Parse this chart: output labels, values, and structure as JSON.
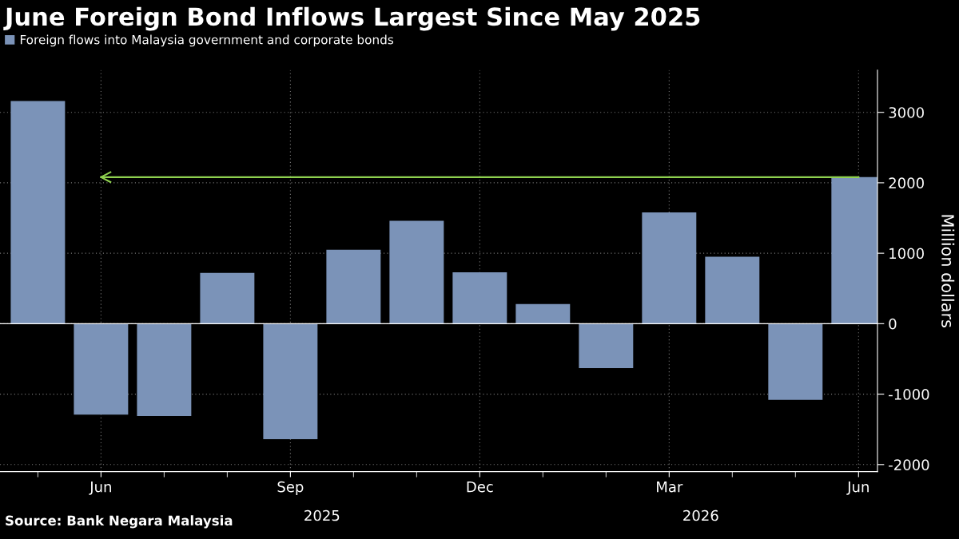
{
  "chart_data": {
    "type": "bar",
    "title": "June Foreign Bond Inflows Largest Since May 2025",
    "categories": [
      null,
      "Jun",
      null,
      null,
      "Sep",
      null,
      null,
      "Dec",
      null,
      null,
      "Mar",
      null,
      null,
      "Jun"
    ],
    "series": [
      {
        "name": "Foreign flows into Malaysia government and corporate bonds",
        "color": "#7b93b8",
        "values": [
          3160,
          -1290,
          -1310,
          720,
          -1640,
          1050,
          1460,
          730,
          280,
          -630,
          1580,
          950,
          -1080,
          2080
        ]
      }
    ],
    "ylabel": "Million dollars",
    "ylim": [
      -2100,
      3600
    ],
    "yticks": [
      -2000,
      -1000,
      0,
      1000,
      2000,
      3000
    ],
    "ref_lines": [
      {
        "axis": "y",
        "value": 2080,
        "color": "#8fd14f"
      }
    ],
    "annotations": [
      "2025",
      "2026",
      "Source: Bank Negara Malaysia"
    ],
    "grid": true,
    "legend": "top left"
  }
}
